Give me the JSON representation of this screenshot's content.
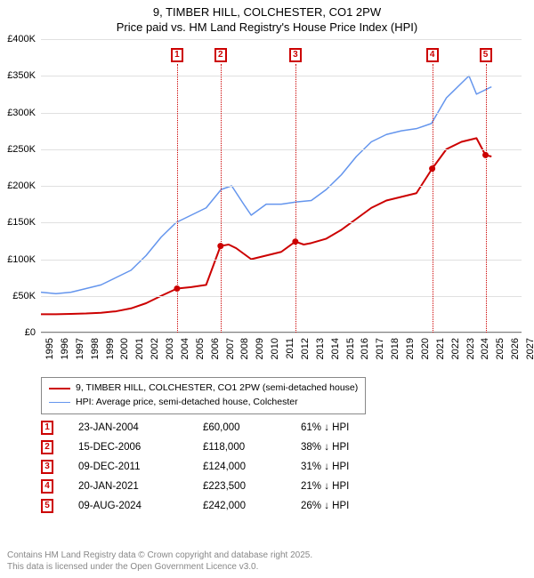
{
  "title": {
    "line1": "9, TIMBER HILL, COLCHESTER, CO1 2PW",
    "line2": "Price paid vs. HM Land Registry's House Price Index (HPI)"
  },
  "chart": {
    "type": "line",
    "background_color": "#ffffff",
    "grid_color": "#e0e0e0",
    "axis_color": "#000000",
    "label_fontsize": 11,
    "xlim": [
      1995,
      2027
    ],
    "ylim": [
      0,
      400000
    ],
    "ytick_step": 50000,
    "y_ticks": [
      "£0",
      "£50K",
      "£100K",
      "£150K",
      "£200K",
      "£250K",
      "£300K",
      "£350K",
      "£400K"
    ],
    "x_ticks": [
      "1995",
      "1996",
      "1997",
      "1998",
      "1999",
      "2000",
      "2001",
      "2002",
      "2003",
      "2004",
      "2005",
      "2006",
      "2007",
      "2008",
      "2009",
      "2010",
      "2011",
      "2012",
      "2013",
      "2014",
      "2015",
      "2016",
      "2017",
      "2018",
      "2019",
      "2020",
      "2021",
      "2022",
      "2023",
      "2024",
      "2025",
      "2026",
      "2027"
    ],
    "series": [
      {
        "name": "price_paid",
        "label": "9, TIMBER HILL, COLCHESTER, CO1 2PW (semi-detached house)",
        "color": "#cc0000",
        "line_width": 2,
        "points": [
          [
            1995.0,
            25000
          ],
          [
            1996.0,
            25000
          ],
          [
            1997.0,
            25500
          ],
          [
            1998.0,
            26000
          ],
          [
            1999.0,
            27000
          ],
          [
            2000.0,
            29000
          ],
          [
            2001.0,
            33000
          ],
          [
            2002.0,
            40000
          ],
          [
            2003.0,
            50000
          ],
          [
            2004.06,
            60000
          ],
          [
            2005.0,
            62000
          ],
          [
            2006.0,
            65000
          ],
          [
            2006.96,
            118000
          ],
          [
            2007.5,
            120000
          ],
          [
            2008.0,
            115000
          ],
          [
            2009.0,
            100000
          ],
          [
            2010.0,
            105000
          ],
          [
            2011.0,
            110000
          ],
          [
            2011.94,
            124000
          ],
          [
            2012.5,
            120000
          ],
          [
            2013.0,
            122000
          ],
          [
            2014.0,
            128000
          ],
          [
            2015.0,
            140000
          ],
          [
            2016.0,
            155000
          ],
          [
            2017.0,
            170000
          ],
          [
            2018.0,
            180000
          ],
          [
            2019.0,
            185000
          ],
          [
            2020.0,
            190000
          ],
          [
            2021.05,
            223500
          ],
          [
            2022.0,
            250000
          ],
          [
            2023.0,
            260000
          ],
          [
            2024.0,
            265000
          ],
          [
            2024.6,
            242000
          ],
          [
            2025.0,
            240000
          ]
        ],
        "sale_markers_x": [
          2004.06,
          2006.96,
          2011.94,
          2021.05,
          2024.6
        ],
        "sale_markers_y": [
          60000,
          118000,
          124000,
          223500,
          242000
        ]
      },
      {
        "name": "hpi",
        "label": "HPI: Average price, semi-detached house, Colchester",
        "color": "#6495ed",
        "line_width": 1.5,
        "points": [
          [
            1995.0,
            55000
          ],
          [
            1996.0,
            53000
          ],
          [
            1997.0,
            55000
          ],
          [
            1998.0,
            60000
          ],
          [
            1999.0,
            65000
          ],
          [
            2000.0,
            75000
          ],
          [
            2001.0,
            85000
          ],
          [
            2002.0,
            105000
          ],
          [
            2003.0,
            130000
          ],
          [
            2004.0,
            150000
          ],
          [
            2005.0,
            160000
          ],
          [
            2006.0,
            170000
          ],
          [
            2007.0,
            195000
          ],
          [
            2007.7,
            200000
          ],
          [
            2008.5,
            175000
          ],
          [
            2009.0,
            160000
          ],
          [
            2010.0,
            175000
          ],
          [
            2011.0,
            175000
          ],
          [
            2012.0,
            178000
          ],
          [
            2013.0,
            180000
          ],
          [
            2014.0,
            195000
          ],
          [
            2015.0,
            215000
          ],
          [
            2016.0,
            240000
          ],
          [
            2017.0,
            260000
          ],
          [
            2018.0,
            270000
          ],
          [
            2019.0,
            275000
          ],
          [
            2020.0,
            278000
          ],
          [
            2021.0,
            285000
          ],
          [
            2022.0,
            320000
          ],
          [
            2023.0,
            340000
          ],
          [
            2023.5,
            350000
          ],
          [
            2024.0,
            325000
          ],
          [
            2025.0,
            335000
          ]
        ]
      }
    ],
    "annotation_markers": [
      {
        "n": "1",
        "x": 2004.06
      },
      {
        "n": "2",
        "x": 2006.96
      },
      {
        "n": "3",
        "x": 2011.94
      },
      {
        "n": "4",
        "x": 2021.05
      },
      {
        "n": "5",
        "x": 2024.6
      }
    ]
  },
  "legend": {
    "border_color": "#888888",
    "items": [
      {
        "color": "#cc0000",
        "width": 2,
        "label": "9, TIMBER HILL, COLCHESTER, CO1 2PW (semi-detached house)"
      },
      {
        "color": "#6495ed",
        "width": 1.5,
        "label": "HPI: Average price, semi-detached house, Colchester"
      }
    ]
  },
  "sales": [
    {
      "n": "1",
      "date": "23-JAN-2004",
      "price": "£60,000",
      "pct": "61% ↓ HPI"
    },
    {
      "n": "2",
      "date": "15-DEC-2006",
      "price": "£118,000",
      "pct": "38% ↓ HPI"
    },
    {
      "n": "3",
      "date": "09-DEC-2011",
      "price": "£124,000",
      "pct": "31% ↓ HPI"
    },
    {
      "n": "4",
      "date": "20-JAN-2021",
      "price": "£223,500",
      "pct": "21% ↓ HPI"
    },
    {
      "n": "5",
      "date": "09-AUG-2024",
      "price": "£242,000",
      "pct": "26% ↓ HPI"
    }
  ],
  "footer": {
    "line1": "Contains HM Land Registry data © Crown copyright and database right 2025.",
    "line2": "This data is licensed under the Open Government Licence v3.0."
  }
}
